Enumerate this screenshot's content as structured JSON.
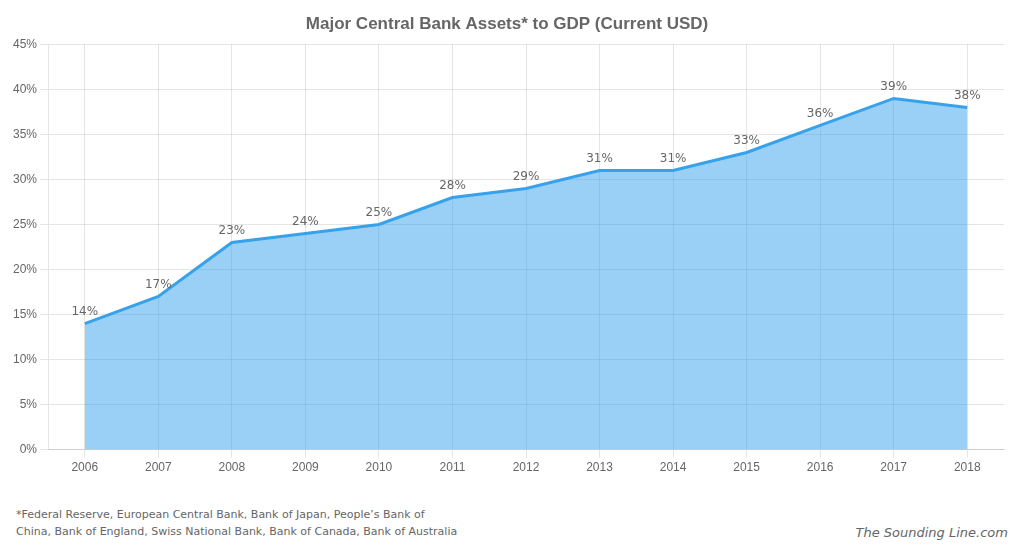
{
  "chart_data": {
    "type": "area",
    "title": "Major Central Bank Assets* to GDP (Current USD)",
    "x": [
      2006,
      2007,
      2008,
      2009,
      2010,
      2011,
      2012,
      2013,
      2014,
      2015,
      2016,
      2017,
      2018
    ],
    "values": [
      0.14,
      0.17,
      0.23,
      0.24,
      0.25,
      0.28,
      0.29,
      0.31,
      0.31,
      0.33,
      0.36,
      0.39,
      0.38
    ],
    "value_labels": [
      "14%",
      "17%",
      "23%",
      "24%",
      "25%",
      "28%",
      "29%",
      "31%",
      "31%",
      "33%",
      "36%",
      "39%",
      "38%"
    ],
    "data_labels": true,
    "xlim": [
      2005.5,
      2018.5
    ],
    "xticks": [
      2006,
      2007,
      2008,
      2009,
      2010,
      2011,
      2012,
      2013,
      2014,
      2015,
      2016,
      2017,
      2018
    ],
    "ylim": [
      0,
      0.45
    ],
    "yticks": [
      {
        "value": 0.0,
        "label": "0%"
      },
      {
        "value": 0.05,
        "label": "5%"
      },
      {
        "value": 0.1,
        "label": "10%"
      },
      {
        "value": 0.15,
        "label": "15%"
      },
      {
        "value": 0.2,
        "label": "20%"
      },
      {
        "value": 0.25,
        "label": "25%"
      },
      {
        "value": 0.3,
        "label": "30%"
      },
      {
        "value": 0.35,
        "label": "35%"
      },
      {
        "value": 0.4,
        "label": "40%"
      },
      {
        "value": 0.45,
        "label": "45%"
      }
    ],
    "grid": true,
    "footnote": "*Federal Reserve, European Central Bank, Bank of Japan, People’s Bank of\nChina, Bank of England, Swiss National Bank, Bank of Canada, Bank of Australia",
    "source": "The Sounding Line.com"
  }
}
